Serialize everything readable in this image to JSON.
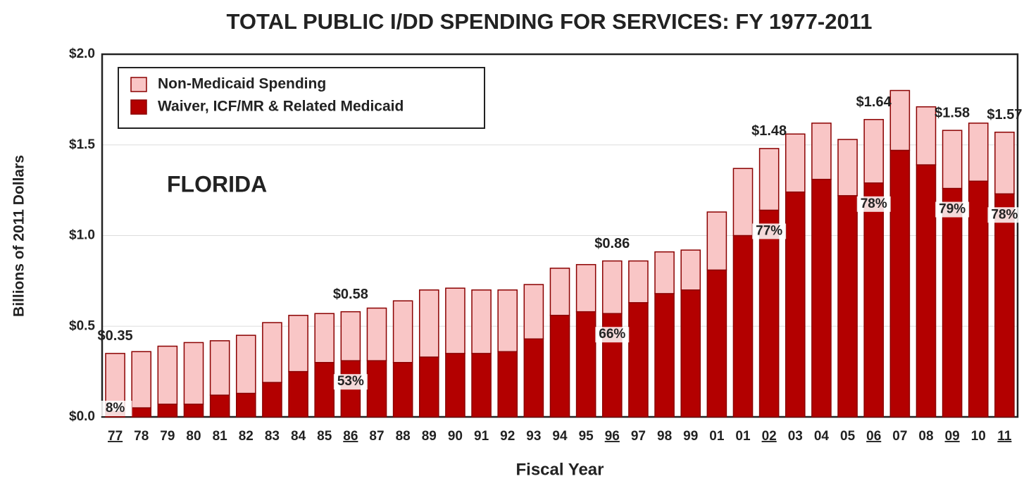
{
  "chart_data": {
    "type": "stacked_bar",
    "title": "TOTAL PUBLIC I/DD SPENDING FOR SERVICES: FY 1977-2011",
    "y_label": "Billions of 2011 Dollars",
    "x_label": "Fiscal Year",
    "note": "FLORIDA",
    "categories": [
      "77",
      "78",
      "79",
      "80",
      "81",
      "82",
      "83",
      "84",
      "85",
      "86",
      "87",
      "88",
      "89",
      "90",
      "91",
      "92",
      "93",
      "94",
      "95",
      "96",
      "97",
      "98",
      "99",
      "01",
      "01",
      "02",
      "03",
      "04",
      "05",
      "06",
      "07",
      "08",
      "09",
      "10",
      "11"
    ],
    "underlined": [
      0,
      9,
      19,
      25,
      29,
      32,
      34
    ],
    "series": [
      {
        "name": "Waiver, ICF/MR & Related Medicaid",
        "color": "#b30000",
        "values": [
          0.03,
          0.05,
          0.07,
          0.07,
          0.12,
          0.13,
          0.19,
          0.25,
          0.3,
          0.31,
          0.31,
          0.3,
          0.33,
          0.35,
          0.35,
          0.36,
          0.43,
          0.56,
          0.58,
          0.57,
          0.63,
          0.68,
          0.7,
          0.81,
          1.0,
          1.14,
          1.24,
          1.31,
          1.22,
          1.29,
          1.47,
          1.39,
          1.26,
          1.3,
          1.23
        ]
      },
      {
        "name": "Non-Medicaid Spending",
        "color": "#f9c6c6",
        "values": [
          0.32,
          0.31,
          0.32,
          0.34,
          0.3,
          0.32,
          0.33,
          0.31,
          0.27,
          0.27,
          0.29,
          0.34,
          0.37,
          0.36,
          0.35,
          0.34,
          0.3,
          0.26,
          0.26,
          0.29,
          0.23,
          0.23,
          0.22,
          0.32,
          0.37,
          0.34,
          0.32,
          0.31,
          0.31,
          0.35,
          0.33,
          0.32,
          0.32,
          0.32,
          0.34
        ]
      }
    ],
    "annotations": [
      {
        "index": 0,
        "total": {
          "value": 0.35,
          "label": "$0.35"
        },
        "share": {
          "value": 8,
          "label": "8%"
        }
      },
      {
        "index": 9,
        "total": {
          "value": 0.58,
          "label": "$0.58"
        },
        "share": {
          "value": 53,
          "label": "53%"
        }
      },
      {
        "index": 19,
        "total": {
          "value": 0.86,
          "label": "$0.86"
        },
        "share": {
          "value": 66,
          "label": "66%"
        }
      },
      {
        "index": 25,
        "total": {
          "value": 1.48,
          "label": "$1.48"
        },
        "share": {
          "value": 77,
          "label": "77%"
        }
      },
      {
        "index": 29,
        "total": {
          "value": 1.64,
          "label": "$1.64"
        },
        "share": {
          "value": 78,
          "label": "78%"
        }
      },
      {
        "index": 32,
        "total": {
          "value": 1.58,
          "label": "$1.58"
        },
        "share": {
          "value": 79,
          "label": "79%"
        }
      },
      {
        "index": 34,
        "total": {
          "value": 1.57,
          "label": "$1.57"
        },
        "share": {
          "value": 78,
          "label": "78%"
        }
      }
    ],
    "ylim": [
      0,
      2.0
    ],
    "yticks": [
      {
        "value": 0,
        "label": "$0.0"
      },
      {
        "value": 0.5,
        "label": "$0.5"
      },
      {
        "value": 1.0,
        "label": "$1.0"
      },
      {
        "value": 1.5,
        "label": "$1.5"
      },
      {
        "value": 2.0,
        "label": "$2.0"
      }
    ],
    "grid": true,
    "legend": "upper left"
  }
}
